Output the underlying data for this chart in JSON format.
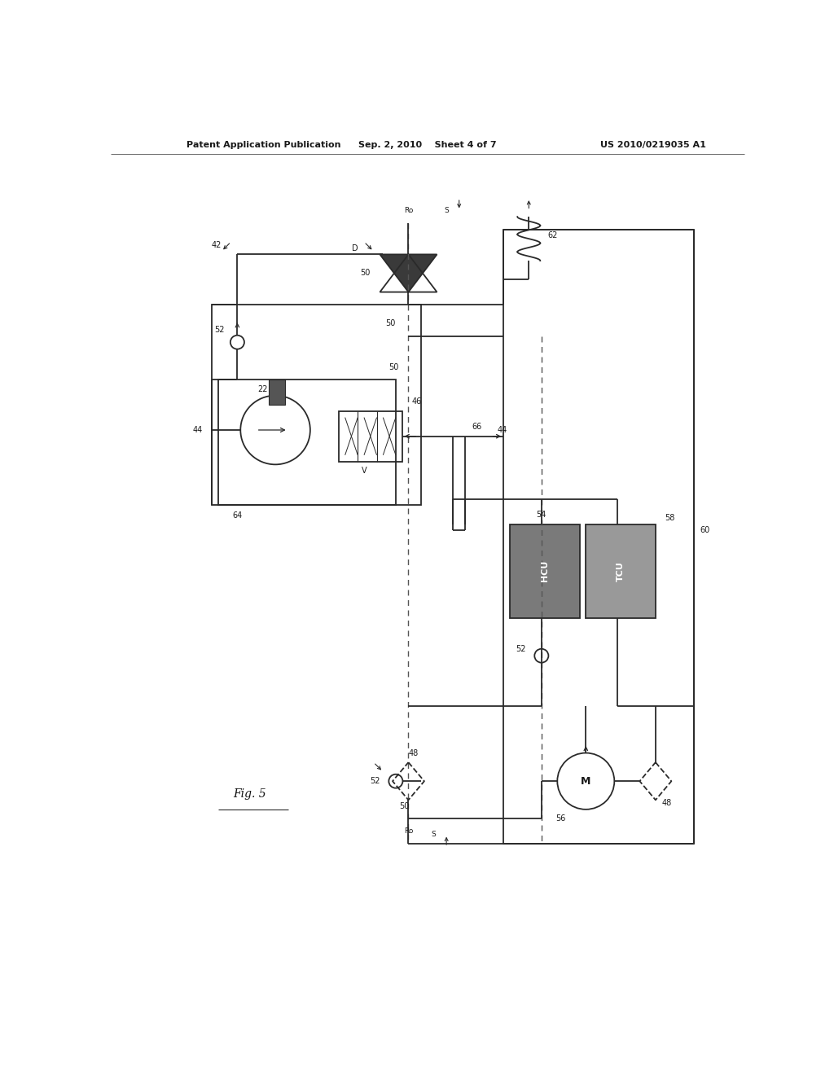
{
  "title_left": "Patent Application Publication",
  "title_center": "Sep. 2, 2010    Sheet 4 of 7",
  "title_right": "US 2010/0219035 A1",
  "fig_label": "Fig. 5",
  "background": "#ffffff",
  "line_color": "#2a2a2a",
  "box_hcu_color": "#7a7a7a",
  "box_tcu_color": "#999999"
}
